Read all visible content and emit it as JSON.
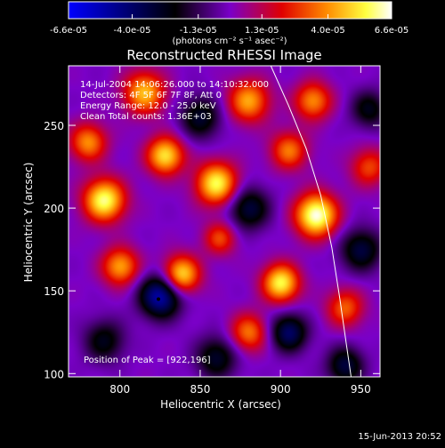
{
  "chart_data": {
    "type": "heatmap",
    "title": "Reconstructed RHESSI Image",
    "xlabel": "Heliocentric X (arcsec)",
    "ylabel": "Heliocentric Y (arcsec)",
    "xlim": [
      768,
      962
    ],
    "ylim": [
      98,
      286
    ],
    "x_ticks": [
      800,
      850,
      900,
      950
    ],
    "y_ticks": [
      100,
      150,
      200,
      250
    ],
    "colorbar": {
      "range": [
        -6.6e-05,
        6.6e-05
      ],
      "tick_labels": [
        "-6.6e-05",
        "-4.0e-05",
        "-1.3e-05",
        "1.3e-05",
        "4.0e-05",
        "6.6e-05"
      ],
      "unit_label": "(photons cm⁻² s⁻¹ asec⁻²)",
      "colormap": [
        "#0000ff",
        "#000000",
        "#7a00c8",
        "#e00000",
        "#ff8c00",
        "#ffff40",
        "#ffffff"
      ]
    },
    "annotations": {
      "time_range": "14-Jul-2004 14:06:26.000 to 14:10:32.000",
      "detectors": "Detectors: 4F 5F 6F 7F 8F, Att 0",
      "energy": "Energy Range: 12.0 - 25.0 keV",
      "clean": "Clean     Total counts: 1.36E+03",
      "peak": "Position of Peak = [922,196]"
    },
    "peak_position": [
      922,
      196
    ],
    "limb_curve": [
      [
        894,
        286
      ],
      [
        905,
        262
      ],
      [
        916,
        236
      ],
      [
        925,
        208
      ],
      [
        932,
        176
      ],
      [
        937,
        145
      ],
      [
        941,
        118
      ],
      [
        944,
        98
      ]
    ],
    "sources": [
      {
        "x": 922,
        "y": 196,
        "amp": 1.0,
        "sigma": 9
      },
      {
        "x": 860,
        "y": 215,
        "amp": 0.85,
        "sigma": 9
      },
      {
        "x": 790,
        "y": 205,
        "amp": 0.9,
        "sigma": 9
      },
      {
        "x": 828,
        "y": 232,
        "amp": 0.8,
        "sigma": 8
      },
      {
        "x": 815,
        "y": 270,
        "amp": 0.7,
        "sigma": 9
      },
      {
        "x": 880,
        "y": 265,
        "amp": 0.65,
        "sigma": 9
      },
      {
        "x": 920,
        "y": 265,
        "amp": 0.6,
        "sigma": 8
      },
      {
        "x": 905,
        "y": 235,
        "amp": 0.55,
        "sigma": 8
      },
      {
        "x": 838,
        "y": 160,
        "amp": 0.8,
        "sigma": 8
      },
      {
        "x": 900,
        "y": 155,
        "amp": 0.85,
        "sigma": 8
      },
      {
        "x": 800,
        "y": 165,
        "amp": 0.65,
        "sigma": 8
      },
      {
        "x": 880,
        "y": 125,
        "amp": 0.55,
        "sigma": 8
      },
      {
        "x": 940,
        "y": 140,
        "amp": 0.5,
        "sigma": 8
      },
      {
        "x": 780,
        "y": 240,
        "amp": 0.6,
        "sigma": 8
      },
      {
        "x": 955,
        "y": 225,
        "amp": 0.45,
        "sigma": 8
      },
      {
        "x": 862,
        "y": 182,
        "amp": 0.45,
        "sigma": 7
      },
      {
        "x": 825,
        "y": 147,
        "amp": -0.8,
        "sigma": 9
      },
      {
        "x": 880,
        "y": 200,
        "amp": -0.5,
        "sigma": 9
      },
      {
        "x": 905,
        "y": 125,
        "amp": -0.6,
        "sigma": 8
      },
      {
        "x": 850,
        "y": 255,
        "amp": -0.45,
        "sigma": 9
      },
      {
        "x": 950,
        "y": 175,
        "amp": -0.5,
        "sigma": 9
      },
      {
        "x": 790,
        "y": 120,
        "amp": -0.4,
        "sigma": 9
      },
      {
        "x": 860,
        "y": 110,
        "amp": -0.45,
        "sigma": 9
      },
      {
        "x": 940,
        "y": 105,
        "amp": -0.5,
        "sigma": 8
      },
      {
        "x": 955,
        "y": 260,
        "amp": -0.4,
        "sigma": 8
      }
    ]
  },
  "footer_date": "15-Jun-2013 20:52"
}
